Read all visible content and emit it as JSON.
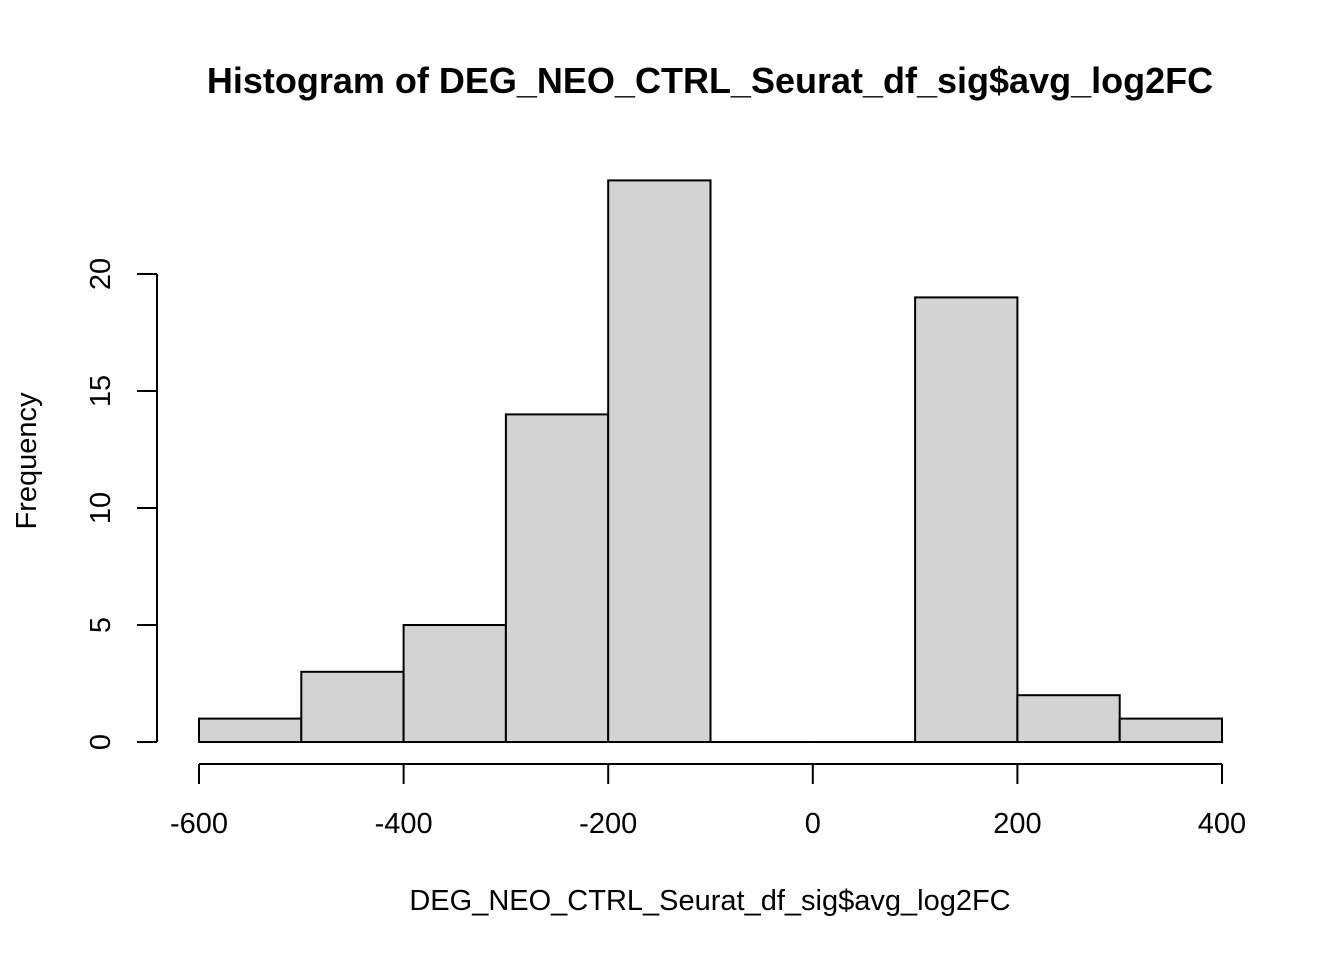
{
  "chart_data": {
    "type": "bar",
    "title": "Histogram of DEG_NEO_CTRL_Seurat_df_sig$avg_log2FC",
    "xlabel": "DEG_NEO_CTRL_Seurat_df_sig$avg_log2FC",
    "ylabel": "Frequency",
    "bins": [
      {
        "x0": -600,
        "x1": -500,
        "count": 1
      },
      {
        "x0": -500,
        "x1": -400,
        "count": 3
      },
      {
        "x0": -400,
        "x1": -300,
        "count": 5
      },
      {
        "x0": -300,
        "x1": -200,
        "count": 14
      },
      {
        "x0": -200,
        "x1": -100,
        "count": 24
      },
      {
        "x0": -100,
        "x1": 0,
        "count": 0
      },
      {
        "x0": 0,
        "x1": 100,
        "count": 0
      },
      {
        "x0": 100,
        "x1": 200,
        "count": 19
      },
      {
        "x0": 200,
        "x1": 300,
        "count": 2
      },
      {
        "x0": 300,
        "x1": 400,
        "count": 1
      }
    ],
    "xlim": [
      -600,
      400
    ],
    "ylim": [
      0,
      24
    ],
    "x_ticks": [
      -600,
      -400,
      -200,
      0,
      200,
      400
    ],
    "x_tick_labels": [
      "-600",
      "-400",
      "-200",
      "0",
      "200",
      "400"
    ],
    "y_ticks": [
      0,
      5,
      10,
      15,
      20
    ],
    "y_tick_labels": [
      "0",
      "5",
      "10",
      "15",
      "20"
    ],
    "bar_fill": "#d3d3d3",
    "bar_stroke": "#000000",
    "grid": false
  }
}
